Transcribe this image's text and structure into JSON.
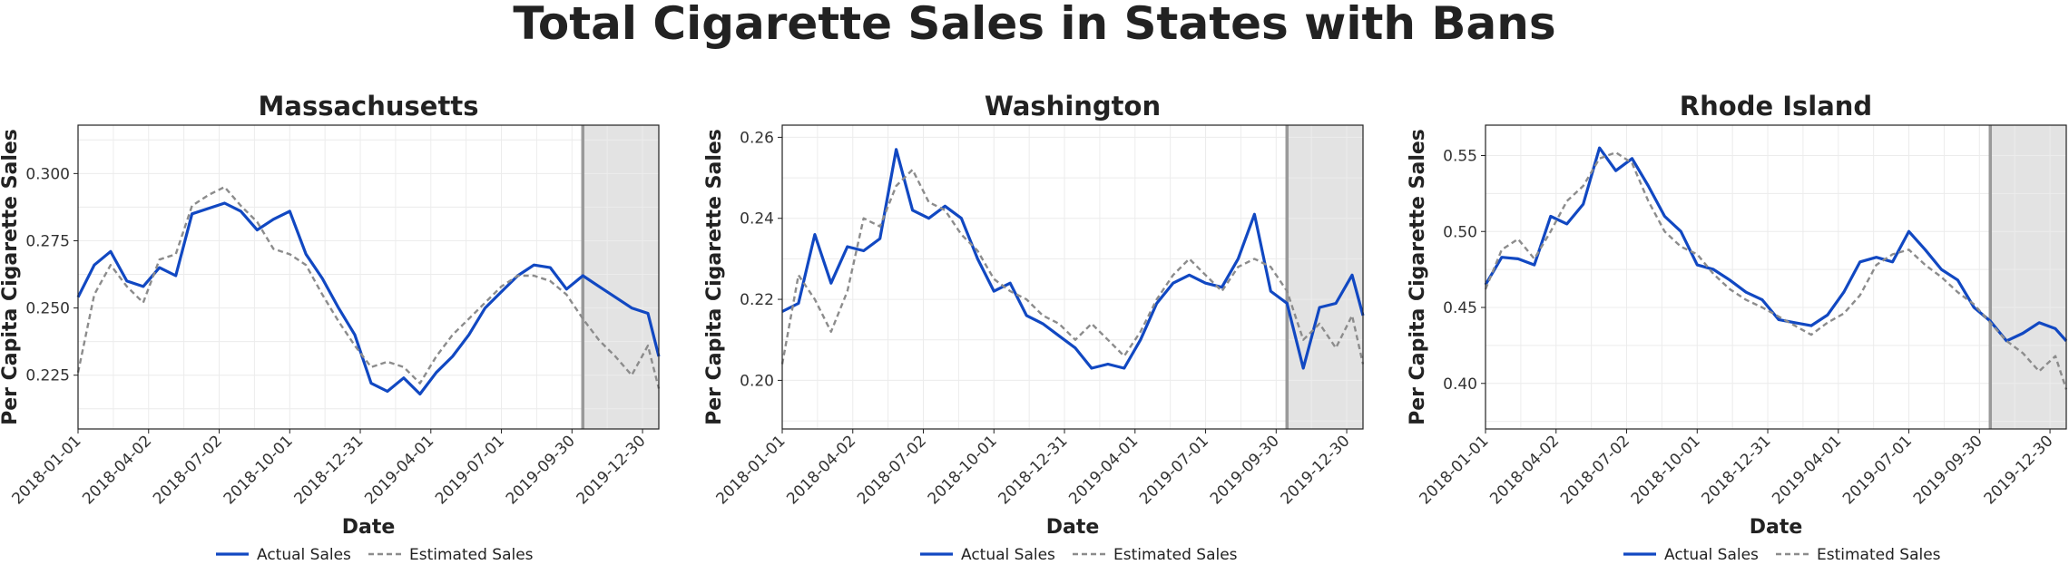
{
  "title": "Total Cigarette Sales in States with Bans",
  "colors": {
    "actual": "#1148c2",
    "estimated": "#8c8c8c",
    "shade": "#e3e3e3",
    "divider": "#9a9a9a",
    "grid": "#ececec"
  },
  "chart_data": [
    {
      "type": "line",
      "title": "Massachusetts",
      "xlabel": "Date",
      "ylabel": "Per Capita Cigarette Sales",
      "xlim": [
        "2018-01-01",
        "2020-01-20"
      ],
      "ylim": [
        0.205,
        0.318
      ],
      "yticks": [
        "0.225",
        "0.250",
        "0.275",
        "0.300"
      ],
      "xticks": [
        "2018-01-01",
        "2018-04-02",
        "2018-07-02",
        "2018-10-01",
        "2018-12-31",
        "2019-04-01",
        "2019-07-01",
        "2019-09-30",
        "2019-12-30"
      ],
      "shaded_from": "2019-10-14",
      "legend_position": "bottom",
      "grid": true,
      "series": [
        {
          "name": "Actual Sales",
          "style": "solid",
          "x": [
            "2018-01-01",
            "2018-01-22",
            "2018-02-12",
            "2018-03-05",
            "2018-03-26",
            "2018-04-16",
            "2018-05-07",
            "2018-05-28",
            "2018-06-18",
            "2018-07-09",
            "2018-07-30",
            "2018-08-20",
            "2018-09-10",
            "2018-10-01",
            "2018-10-22",
            "2018-11-12",
            "2018-12-03",
            "2018-12-24",
            "2019-01-14",
            "2019-02-04",
            "2019-02-25",
            "2019-03-18",
            "2019-04-08",
            "2019-04-29",
            "2019-05-20",
            "2019-06-10",
            "2019-07-01",
            "2019-07-22",
            "2019-08-12",
            "2019-09-02",
            "2019-09-23",
            "2019-10-14",
            "2019-11-04",
            "2019-11-25",
            "2019-12-16",
            "2020-01-06",
            "2020-01-20"
          ],
          "y": [
            0.254,
            0.266,
            0.271,
            0.26,
            0.258,
            0.265,
            0.262,
            0.285,
            0.287,
            0.289,
            0.286,
            0.279,
            0.283,
            0.286,
            0.27,
            0.261,
            0.25,
            0.24,
            0.222,
            0.219,
            0.224,
            0.218,
            0.226,
            0.232,
            0.24,
            0.25,
            0.256,
            0.262,
            0.266,
            0.265,
            0.257,
            0.262,
            0.258,
            0.254,
            0.25,
            0.248,
            0.232
          ]
        },
        {
          "name": "Estimated Sales",
          "style": "dashed",
          "x": [
            "2018-01-01",
            "2018-01-22",
            "2018-02-12",
            "2018-03-05",
            "2018-03-26",
            "2018-04-16",
            "2018-05-07",
            "2018-05-28",
            "2018-06-18",
            "2018-07-09",
            "2018-07-30",
            "2018-08-20",
            "2018-09-10",
            "2018-10-01",
            "2018-10-22",
            "2018-11-12",
            "2018-12-03",
            "2018-12-24",
            "2019-01-14",
            "2019-02-04",
            "2019-02-25",
            "2019-03-18",
            "2019-04-08",
            "2019-04-29",
            "2019-05-20",
            "2019-06-10",
            "2019-07-01",
            "2019-07-22",
            "2019-08-12",
            "2019-09-02",
            "2019-09-23",
            "2019-10-14",
            "2019-11-04",
            "2019-11-25",
            "2019-12-16",
            "2020-01-06",
            "2020-01-20"
          ],
          "y": [
            0.226,
            0.255,
            0.266,
            0.258,
            0.252,
            0.268,
            0.27,
            0.288,
            0.292,
            0.295,
            0.288,
            0.282,
            0.272,
            0.27,
            0.266,
            0.255,
            0.245,
            0.236,
            0.228,
            0.23,
            0.228,
            0.222,
            0.232,
            0.24,
            0.246,
            0.252,
            0.258,
            0.262,
            0.262,
            0.26,
            0.255,
            0.246,
            0.238,
            0.232,
            0.225,
            0.236,
            0.22
          ]
        }
      ]
    },
    {
      "type": "line",
      "title": "Washington",
      "xlabel": "Date",
      "ylabel": "Per Capita Cigarette Sales",
      "xlim": [
        "2018-01-01",
        "2020-01-20"
      ],
      "ylim": [
        0.188,
        0.263
      ],
      "yticks": [
        "0.20",
        "0.22",
        "0.24",
        "0.26"
      ],
      "xticks": [
        "2018-01-01",
        "2018-04-02",
        "2018-07-02",
        "2018-10-01",
        "2018-12-31",
        "2019-04-01",
        "2019-07-01",
        "2019-09-30",
        "2019-12-30"
      ],
      "shaded_from": "2019-10-14",
      "legend_position": "bottom",
      "grid": true,
      "series": [
        {
          "name": "Actual Sales",
          "style": "solid",
          "x": [
            "2018-01-01",
            "2018-01-22",
            "2018-02-12",
            "2018-03-05",
            "2018-03-26",
            "2018-04-16",
            "2018-05-07",
            "2018-05-28",
            "2018-06-18",
            "2018-07-09",
            "2018-07-30",
            "2018-08-20",
            "2018-09-10",
            "2018-10-01",
            "2018-10-22",
            "2018-11-12",
            "2018-12-03",
            "2018-12-24",
            "2019-01-14",
            "2019-02-04",
            "2019-02-25",
            "2019-03-18",
            "2019-04-08",
            "2019-04-29",
            "2019-05-20",
            "2019-06-10",
            "2019-07-01",
            "2019-07-22",
            "2019-08-12",
            "2019-09-02",
            "2019-09-23",
            "2019-10-14",
            "2019-11-04",
            "2019-11-25",
            "2019-12-16",
            "2020-01-06",
            "2020-01-20"
          ],
          "y": [
            0.217,
            0.219,
            0.236,
            0.224,
            0.233,
            0.232,
            0.235,
            0.257,
            0.242,
            0.24,
            0.243,
            0.24,
            0.23,
            0.222,
            0.224,
            0.216,
            0.214,
            0.211,
            0.208,
            0.203,
            0.204,
            0.203,
            0.21,
            0.219,
            0.224,
            0.226,
            0.224,
            0.223,
            0.23,
            0.241,
            0.222,
            0.219,
            0.203,
            0.218,
            0.219,
            0.226,
            0.216
          ]
        },
        {
          "name": "Estimated Sales",
          "style": "dashed",
          "x": [
            "2018-01-01",
            "2018-01-22",
            "2018-02-12",
            "2018-03-05",
            "2018-03-26",
            "2018-04-16",
            "2018-05-07",
            "2018-05-28",
            "2018-06-18",
            "2018-07-09",
            "2018-07-30",
            "2018-08-20",
            "2018-09-10",
            "2018-10-01",
            "2018-10-22",
            "2018-11-12",
            "2018-12-03",
            "2018-12-24",
            "2019-01-14",
            "2019-02-04",
            "2019-02-25",
            "2019-03-18",
            "2019-04-08",
            "2019-04-29",
            "2019-05-20",
            "2019-06-10",
            "2019-07-01",
            "2019-07-22",
            "2019-08-12",
            "2019-09-02",
            "2019-09-23",
            "2019-10-14",
            "2019-11-04",
            "2019-11-25",
            "2019-12-16",
            "2020-01-06",
            "2020-01-20"
          ],
          "y": [
            0.204,
            0.226,
            0.22,
            0.212,
            0.222,
            0.24,
            0.238,
            0.248,
            0.252,
            0.244,
            0.242,
            0.236,
            0.232,
            0.225,
            0.222,
            0.22,
            0.216,
            0.214,
            0.21,
            0.214,
            0.21,
            0.206,
            0.212,
            0.22,
            0.226,
            0.23,
            0.226,
            0.222,
            0.228,
            0.23,
            0.228,
            0.222,
            0.21,
            0.214,
            0.208,
            0.216,
            0.204
          ]
        }
      ]
    },
    {
      "type": "line",
      "title": "Rhode Island",
      "xlabel": "Date",
      "ylabel": "Per Capita Cigarette Sales",
      "xlim": [
        "2018-01-01",
        "2020-01-20"
      ],
      "ylim": [
        0.37,
        0.57
      ],
      "yticks": [
        "0.40",
        "0.45",
        "0.50",
        "0.55"
      ],
      "xticks": [
        "2018-01-01",
        "2018-04-02",
        "2018-07-02",
        "2018-10-01",
        "2018-12-31",
        "2019-04-01",
        "2019-07-01",
        "2019-09-30",
        "2019-12-30"
      ],
      "shaded_from": "2019-10-14",
      "legend_position": "bottom",
      "grid": true,
      "series": [
        {
          "name": "Actual Sales",
          "style": "solid",
          "x": [
            "2018-01-01",
            "2018-01-22",
            "2018-02-12",
            "2018-03-05",
            "2018-03-26",
            "2018-04-16",
            "2018-05-07",
            "2018-05-28",
            "2018-06-18",
            "2018-07-09",
            "2018-07-30",
            "2018-08-20",
            "2018-09-10",
            "2018-10-01",
            "2018-10-22",
            "2018-11-12",
            "2018-12-03",
            "2018-12-24",
            "2019-01-14",
            "2019-02-04",
            "2019-02-25",
            "2019-03-18",
            "2019-04-08",
            "2019-04-29",
            "2019-05-20",
            "2019-06-10",
            "2019-07-01",
            "2019-07-22",
            "2019-08-12",
            "2019-09-02",
            "2019-09-23",
            "2019-10-14",
            "2019-11-04",
            "2019-11-25",
            "2019-12-16",
            "2020-01-06",
            "2020-01-20"
          ],
          "y": [
            0.465,
            0.483,
            0.482,
            0.478,
            0.51,
            0.505,
            0.518,
            0.555,
            0.54,
            0.548,
            0.53,
            0.51,
            0.5,
            0.478,
            0.475,
            0.468,
            0.46,
            0.455,
            0.442,
            0.44,
            0.438,
            0.445,
            0.46,
            0.48,
            0.483,
            0.48,
            0.5,
            0.488,
            0.475,
            0.468,
            0.45,
            0.441,
            0.428,
            0.433,
            0.44,
            0.436,
            0.428
          ]
        },
        {
          "name": "Estimated Sales",
          "style": "dashed",
          "x": [
            "2018-01-01",
            "2018-01-22",
            "2018-02-12",
            "2018-03-05",
            "2018-03-26",
            "2018-04-16",
            "2018-05-07",
            "2018-05-28",
            "2018-06-18",
            "2018-07-09",
            "2018-07-30",
            "2018-08-20",
            "2018-09-10",
            "2018-10-01",
            "2018-10-22",
            "2018-11-12",
            "2018-12-03",
            "2018-12-24",
            "2019-01-14",
            "2019-02-04",
            "2019-02-25",
            "2019-03-18",
            "2019-04-08",
            "2019-04-29",
            "2019-05-20",
            "2019-06-10",
            "2019-07-01",
            "2019-07-22",
            "2019-08-12",
            "2019-09-02",
            "2019-09-23",
            "2019-10-14",
            "2019-11-04",
            "2019-11-25",
            "2019-12-16",
            "2020-01-06",
            "2020-01-20"
          ],
          "y": [
            0.462,
            0.488,
            0.495,
            0.482,
            0.5,
            0.52,
            0.53,
            0.548,
            0.552,
            0.545,
            0.52,
            0.5,
            0.49,
            0.485,
            0.472,
            0.462,
            0.455,
            0.45,
            0.444,
            0.438,
            0.432,
            0.44,
            0.446,
            0.458,
            0.478,
            0.485,
            0.488,
            0.478,
            0.47,
            0.46,
            0.452,
            0.44,
            0.428,
            0.42,
            0.408,
            0.418,
            0.396
          ]
        }
      ]
    }
  ]
}
